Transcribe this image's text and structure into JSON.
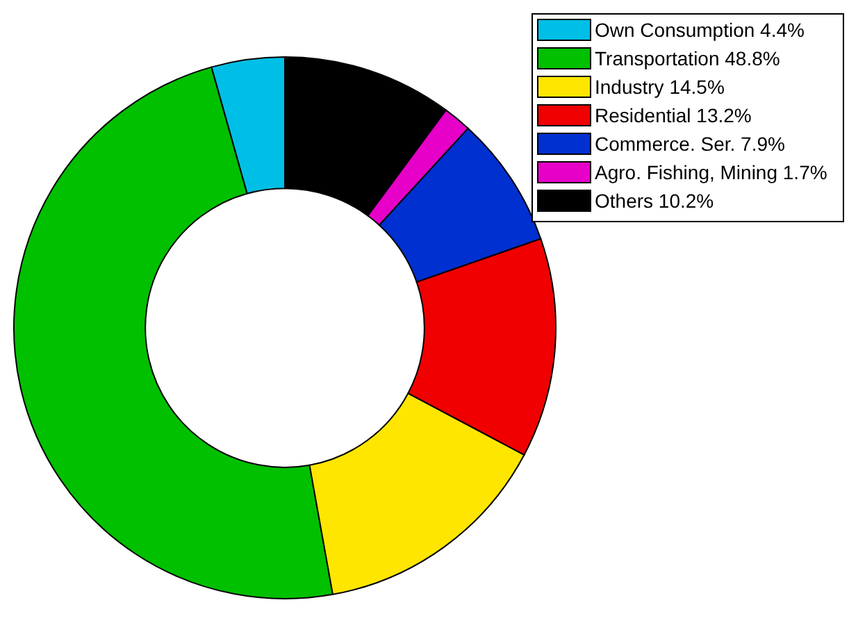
{
  "chart_data": {
    "type": "donut",
    "categories": [
      "Own Consumption",
      "Transportation",
      "Industry",
      "Residential",
      "Commerce. Ser.",
      "Agro. Fishing, Mining",
      "Others"
    ],
    "values": [
      4.4,
      48.8,
      14.5,
      13.2,
      7.9,
      1.7,
      10.2
    ],
    "value_labels": [
      "4.4%",
      "48.8%",
      "14.5%",
      "13.2%",
      "7.9%",
      "1.7%",
      "10.2%"
    ],
    "colors": [
      "#00bfe6",
      "#00c000",
      "#ffe600",
      "#f00000",
      "#0030d0",
      "#e600c8",
      "#000000"
    ],
    "legend": "top right"
  }
}
